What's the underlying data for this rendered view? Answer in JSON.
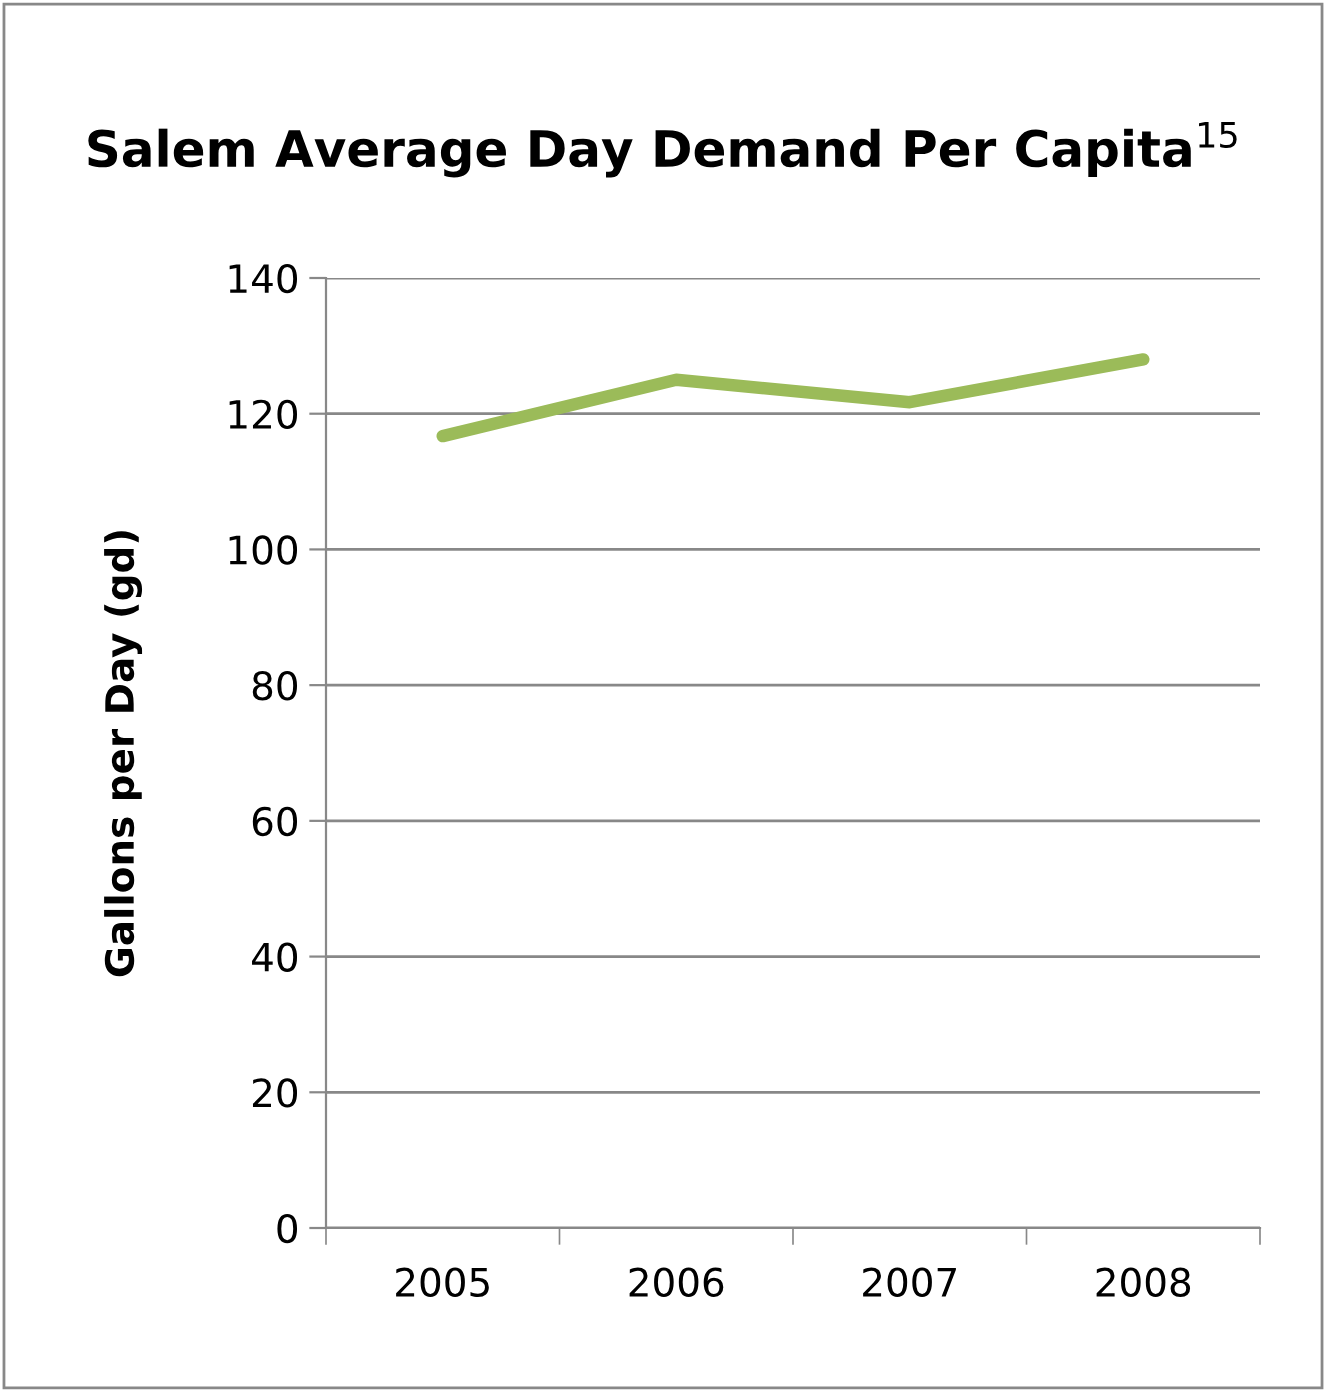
{
  "chart_data": {
    "type": "line",
    "title": "Salem Average Day Demand Per Capita$^{15}$",
    "ylabel": "Gallons per Day (gd)",
    "categories": [
      "2005",
      "2006",
      "2007",
      "2008"
    ],
    "series": [
      {
        "color": "#9bbb59",
        "values": [
          116.7,
          125,
          121.7,
          128
        ]
      }
    ],
    "ylim": [
      0,
      140
    ],
    "yticks": [
      0,
      20,
      40,
      60,
      80,
      100,
      120,
      140
    ],
    "grid": "y",
    "marker": "none",
    "line_style": "solid"
  }
}
